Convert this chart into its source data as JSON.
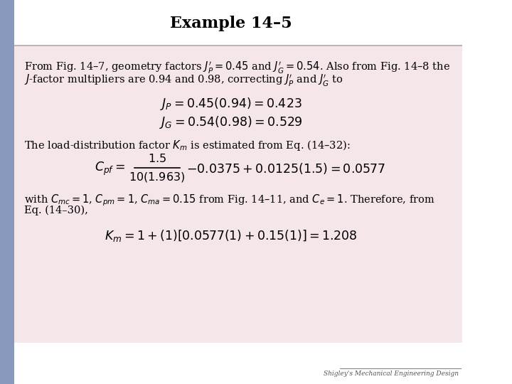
{
  "title": "Example 14–5",
  "background_color": "#f5e6ea",
  "slide_bg": "#ffffff",
  "left_bar_color": "#8899bb",
  "title_fontsize": 16,
  "footer": "Shigley's Mechanical Engineering Design",
  "body_lines": [
    "From Fig. 14–7, geometry factors $J^{\\prime}_P = 0.45$ and $J^{\\prime}_G = 0.54$. Also from Fig. 14–8 the",
    "$J$-factor multipliers are 0.94 and 0.98, correcting $J^{\\prime}_P$ and $J^{\\prime}_G$ to"
  ],
  "eq1": "$J_P = 0.45(0.94) = 0.423$",
  "eq2": "$J_G = 0.54(0.98) = 0.529$",
  "mid_line": "The load-distribution factor $K_m$ is estimated from Eq. (14–32):",
  "eq3_num": "$1.5$",
  "eq3_den": "$10(1.963)$",
  "eq3_rest": "$- 0.0375 + 0.0125(1.5) = 0.0577$",
  "eq3_lhs": "$C_{pf} =$",
  "body_lines2": [
    "with $C_{mc} = 1$, $C_{pm} = 1$, $C_{ma} = 0.15$ from Fig. 14–11, and $C_e = 1$. Therefore, from",
    "Eq. (14–30),"
  ],
  "eq4": "$K_m = 1 + (1)[0.0577(1) + 0.15(1)] = 1.208$"
}
